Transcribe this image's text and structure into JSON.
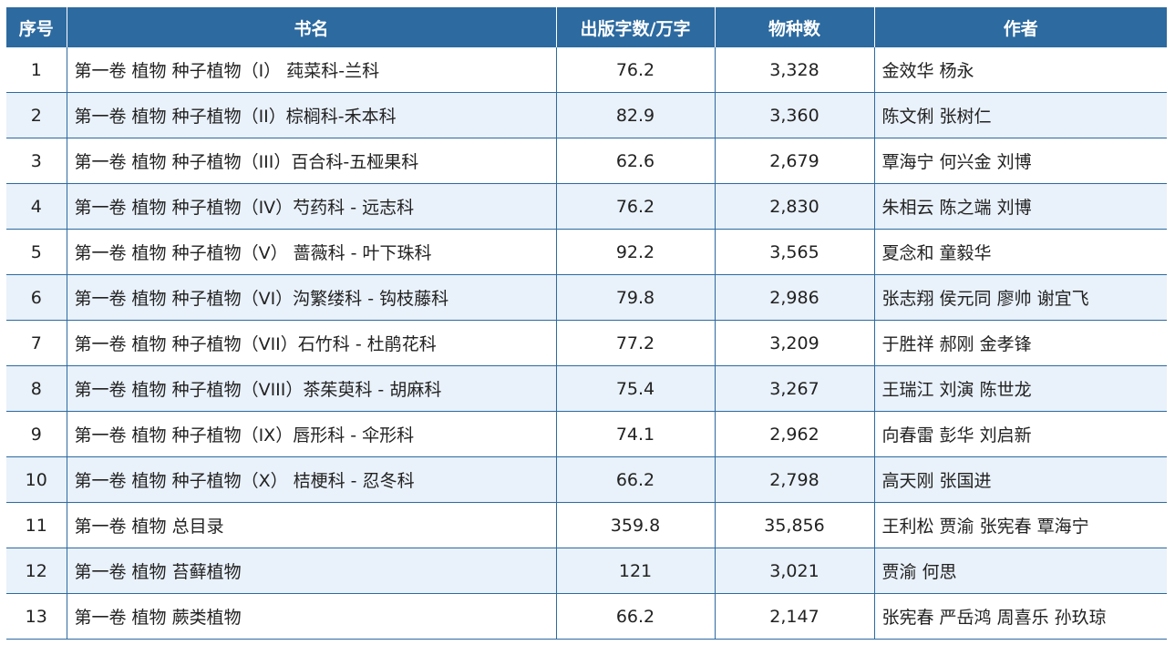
{
  "table": {
    "headers": {
      "index": "序号",
      "title": "书名",
      "words": "出版字数/万字",
      "species": "物种数",
      "authors": "作者"
    },
    "rows": [
      {
        "index": "1",
        "title": "第一卷 植物 种子植物（I） 莼菜科-兰科",
        "words": "76.2",
        "species": "3,328",
        "authors": "金效华 杨永"
      },
      {
        "index": "2",
        "title": "第一卷 植物 种子植物（II）棕榈科-禾本科",
        "words": "82.9",
        "species": "3,360",
        "authors": "陈文俐 张树仁"
      },
      {
        "index": "3",
        "title": "第一卷 植物 种子植物（III）百合科-五桠果科",
        "words": "62.6",
        "species": "2,679",
        "authors": "覃海宁 何兴金 刘博"
      },
      {
        "index": "4",
        "title": "第一卷 植物 种子植物（IV）芍药科 - 远志科",
        "words": "76.2",
        "species": "2,830",
        "authors": "朱相云 陈之端 刘博"
      },
      {
        "index": "5",
        "title": "第一卷 植物 种子植物（V） 蔷薇科 - 叶下珠科",
        "words": "92.2",
        "species": "3,565",
        "authors": "夏念和 童毅华"
      },
      {
        "index": "6",
        "title": "第一卷 植物 种子植物（VI）沟繁缕科 - 钩枝藤科",
        "words": "79.8",
        "species": "2,986",
        "authors": "张志翔 侯元同 廖帅 谢宜飞"
      },
      {
        "index": "7",
        "title": "第一卷 植物 种子植物（VII）石竹科 - 杜鹃花科",
        "words": "77.2",
        "species": "3,209",
        "authors": "于胜祥 郝刚 金孝锋"
      },
      {
        "index": "8",
        "title": "第一卷 植物 种子植物（VIII）茶茱萸科 - 胡麻科",
        "words": "75.4",
        "species": "3,267",
        "authors": "王瑞江 刘演 陈世龙"
      },
      {
        "index": "9",
        "title": "第一卷 植物 种子植物（IX）唇形科 - 伞形科",
        "words": "74.1",
        "species": "2,962",
        "authors": "向春雷 彭华 刘启新"
      },
      {
        "index": "10",
        "title": "第一卷 植物 种子植物（X） 桔梗科 - 忍冬科",
        "words": "66.2",
        "species": "2,798",
        "authors": "高天刚 张国进"
      },
      {
        "index": "11",
        "title": "第一卷 植物 总目录",
        "words": "359.8",
        "species": "35,856",
        "authors": "王利松 贾渝 张宪春 覃海宁"
      },
      {
        "index": "12",
        "title": "第一卷 植物 苔藓植物",
        "words": "121",
        "species": "3,021",
        "authors": "贾渝 何思"
      },
      {
        "index": "13",
        "title": "第一卷 植物 蕨类植物",
        "words": "66.2",
        "species": "2,147",
        "authors": "张宪春 严岳鸿 周喜乐 孙玖琼"
      }
    ]
  }
}
